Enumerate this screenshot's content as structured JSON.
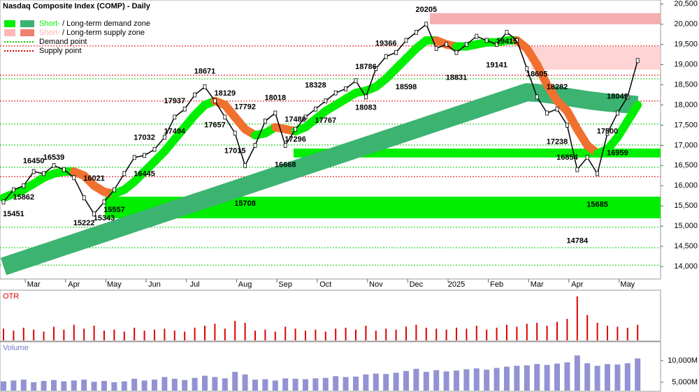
{
  "chart_data": {
    "type": "line",
    "title": "Nasdaq Composite Index (COMP) - Daily",
    "legend": [
      {
        "label": "Short-",
        "sep": " / ",
        "label2": "Long-term demand zone",
        "colors": [
          "#00ee00",
          "#3cb371"
        ]
      },
      {
        "label": "Short-",
        "sep": " / ",
        "label2": "Long-term supply zone",
        "colors": [
          "#ffb6b6",
          "#f08070"
        ]
      },
      {
        "label": "Demand point",
        "colors": [
          "#00cc00"
        ]
      },
      {
        "label": "Supply point",
        "colors": [
          "#dd0000"
        ]
      }
    ],
    "categories": [
      null,
      null,
      null,
      "Mar",
      null,
      null,
      null,
      "Apr",
      null,
      null,
      null,
      "May",
      null,
      null,
      null,
      "Jun",
      null,
      null,
      null,
      "Jul",
      null,
      null,
      null,
      null,
      "Aug",
      null,
      null,
      null,
      "Sep",
      null,
      null,
      null,
      "Oct",
      null,
      null,
      null,
      null,
      "Nov",
      null,
      null,
      null,
      "Dec",
      null,
      null,
      null,
      "2025",
      null,
      null,
      null,
      "Feb",
      null,
      null,
      null,
      "Mar",
      null,
      null,
      null,
      "Apr",
      null,
      null,
      null,
      null,
      "May",
      null
    ],
    "price": {
      "color": "#000000",
      "values": [
        15600,
        15900,
        16000,
        16350,
        16300,
        16500,
        16400,
        16200,
        15700,
        15300,
        15600,
        15900,
        16300,
        16700,
        16750,
        16900,
        17200,
        17700,
        17900,
        18250,
        18450,
        18100,
        17700,
        17300,
        16500,
        17000,
        17600,
        17800,
        17000,
        17400,
        17700,
        17900,
        18100,
        18300,
        18400,
        18600,
        18200,
        18900,
        19200,
        19300,
        19600,
        19800,
        20000,
        19400,
        19500,
        19300,
        19500,
        19700,
        19600,
        19500,
        19800,
        19600,
        18900,
        18200,
        17800,
        17900,
        17500,
        16400,
        16700,
        16300,
        17300,
        17800,
        18200,
        19100
      ]
    },
    "short_term": {
      "color": "#00ee00",
      "color_down": "#f07030",
      "values": [
        15700,
        15800,
        15900,
        16050,
        16200,
        16300,
        16350,
        16350,
        16250,
        16000,
        15850,
        15800,
        15900,
        16100,
        16350,
        16600,
        16850,
        17150,
        17450,
        17750,
        18000,
        18100,
        18000,
        17700,
        17400,
        17250,
        17300,
        17450,
        17400,
        17350,
        17450,
        17650,
        17850,
        18000,
        18150,
        18300,
        18350,
        18450,
        18650,
        18900,
        19150,
        19400,
        19600,
        19600,
        19500,
        19450,
        19450,
        19500,
        19550,
        19550,
        19600,
        19600,
        19400,
        19000,
        18500,
        18100,
        17850,
        17400,
        17000,
        16800,
        16900,
        17200,
        17600,
        18000
      ]
    },
    "long_term": {
      "color": "#3cb371",
      "values": [
        14000,
        14083,
        14166,
        14249,
        14332,
        14415,
        14498,
        14581,
        14664,
        14747,
        14830,
        14913,
        14996,
        15079,
        15162,
        15245,
        15328,
        15411,
        15494,
        15577,
        15660,
        15743,
        15826,
        15909,
        15992,
        16075,
        16158,
        16241,
        16324,
        16407,
        16490,
        16573,
        16656,
        16739,
        16822,
        16905,
        16988,
        17071,
        17154,
        17237,
        17320,
        17403,
        17486,
        17569,
        17652,
        17735,
        17818,
        17901,
        17984,
        18067,
        18150,
        18233,
        18316,
        18300,
        18270,
        18240,
        18200,
        18160,
        18120,
        18090,
        18060,
        18040,
        18020,
        18000
      ]
    },
    "demand_zones": [
      [
        16700,
        16920
      ],
      [
        15193,
        15729
      ]
    ],
    "supply_zones": [
      [
        19999,
        20275
      ],
      [
        18875,
        19446
      ]
    ],
    "demand_points": [
      18649,
      17527,
      17009,
      16456,
      14970,
      14466,
      14034
    ],
    "supply_points": [
      19463,
      18737,
      18097,
      16225
    ],
    "annotations": [
      {
        "label": 15451,
        "i": 1,
        "side": "below"
      },
      {
        "label": 15862,
        "i": 2,
        "side": "below"
      },
      {
        "label": 16450,
        "i": 3,
        "side": "above"
      },
      {
        "label": 16539,
        "i": 5,
        "side": "above"
      },
      {
        "label": 15222,
        "i": 8,
        "side": "below"
      },
      {
        "label": 16021,
        "i": 9,
        "side": "above"
      },
      {
        "label": 15343,
        "i": 10,
        "side": "below"
      },
      {
        "label": 15557,
        "i": 11,
        "side": "below"
      },
      {
        "label": 17032,
        "i": 14,
        "side": "above"
      },
      {
        "label": 16445,
        "i": 14,
        "side": "below"
      },
      {
        "label": 17937,
        "i": 17,
        "side": "above"
      },
      {
        "label": 17494,
        "i": 17,
        "side": "below"
      },
      {
        "label": 18671,
        "i": 20,
        "side": "above"
      },
      {
        "label": 18129,
        "i": 22,
        "side": "above"
      },
      {
        "label": 17657,
        "i": 21,
        "side": "below"
      },
      {
        "label": 17792,
        "i": 24,
        "side": "above"
      },
      {
        "label": 17015,
        "i": 23,
        "side": "below"
      },
      {
        "label": 15708,
        "i": 24,
        "side": "below"
      },
      {
        "label": 18018,
        "i": 27,
        "side": "above"
      },
      {
        "label": 17480,
        "i": 29,
        "side": "above"
      },
      {
        "label": 17296,
        "i": 29,
        "side": "below"
      },
      {
        "label": 16668,
        "i": 28,
        "side": "below"
      },
      {
        "label": 18328,
        "i": 31,
        "side": "above"
      },
      {
        "label": 17767,
        "i": 32,
        "side": "below"
      },
      {
        "label": 18786,
        "i": 36,
        "side": "above"
      },
      {
        "label": 18083,
        "i": 36,
        "side": "below"
      },
      {
        "label": 19366,
        "i": 38,
        "side": "above"
      },
      {
        "label": 18598,
        "i": 40,
        "side": "below"
      },
      {
        "label": 20205,
        "i": 42,
        "side": "above"
      },
      {
        "label": 18831,
        "i": 45,
        "side": "below"
      },
      {
        "label": 19415,
        "i": 50,
        "side": "above"
      },
      {
        "label": 19141,
        "i": 49,
        "side": "below"
      },
      {
        "label": 18605,
        "i": 53,
        "side": "above"
      },
      {
        "label": 18282,
        "i": 55,
        "side": "above"
      },
      {
        "label": 17238,
        "i": 55,
        "side": "below"
      },
      {
        "label": 16854,
        "i": 56,
        "side": "below"
      },
      {
        "label": 14784,
        "i": 57,
        "side": "below"
      },
      {
        "label": 15685,
        "i": 59,
        "side": "below"
      },
      {
        "label": 18049,
        "i": 61,
        "side": "above"
      },
      {
        "label": 17500,
        "i": 60,
        "side": "below"
      },
      {
        "label": 16959,
        "i": 61,
        "side": "below"
      }
    ],
    "ylim": [
      13690,
      20600
    ],
    "yticks": [
      {
        "value": 14000,
        "label": "14,000"
      },
      {
        "value": 14500,
        "label": "14,500"
      },
      {
        "value": 15000,
        "label": "15,000"
      },
      {
        "value": 15500,
        "label": "15,500"
      },
      {
        "value": 16000,
        "label": "16,000"
      },
      {
        "value": 16500,
        "label": "16,500"
      },
      {
        "value": 17000,
        "label": "17,000"
      },
      {
        "value": 17500,
        "label": "17,500"
      },
      {
        "value": 18000,
        "label": "18,000"
      },
      {
        "value": 18500,
        "label": "18,500"
      },
      {
        "value": 19000,
        "label": "19,000"
      },
      {
        "value": 19500,
        "label": "19,500"
      },
      {
        "value": 20000,
        "label": "20,000"
      },
      {
        "value": 20500,
        "label": "20,500"
      }
    ],
    "otr": {
      "label": "OTR",
      "color": "#dd0000",
      "ylim": [
        0,
        5
      ],
      "values": [
        1.2,
        1.0,
        1.3,
        1.1,
        0.9,
        1.4,
        1.1,
        1.6,
        1.2,
        1.5,
        1.0,
        1.1,
        0.9,
        1.3,
        1.0,
        1.1,
        1.2,
        1.0,
        0.9,
        1.3,
        1.5,
        1.7,
        1.2,
        2.0,
        1.8,
        1.0,
        1.1,
        0.9,
        1.4,
        1.2,
        1.0,
        1.1,
        0.9,
        1.2,
        1.3,
        1.1,
        1.5,
        1.0,
        1.2,
        1.1,
        1.4,
        1.6,
        1.3,
        1.2,
        1.1,
        1.3,
        1.2,
        1.5,
        1.1,
        1.3,
        1.6,
        1.4,
        1.7,
        1.8,
        1.5,
        1.9,
        2.2,
        4.5,
        2.6,
        1.8,
        1.5,
        1.4,
        1.3,
        1.6
      ]
    },
    "volume": {
      "label": "Volume",
      "color": "#7878c8",
      "ylim": [
        3060,
        14030
      ],
      "yticks": [
        {
          "value": 10000,
          "label": "10,000M"
        },
        {
          "value": 5000,
          "label": "5,000M"
        }
      ],
      "values": [
        5200,
        5400,
        5600,
        5000,
        5300,
        5500,
        5200,
        5400,
        5600,
        5100,
        5300,
        5000,
        5200,
        5800,
        5400,
        5600,
        6200,
        5800,
        5500,
        6000,
        6500,
        6200,
        5900,
        7400,
        6800,
        5600,
        5700,
        5400,
        5900,
        5800,
        5700,
        5900,
        6000,
        6400,
        6200,
        6300,
        6800,
        7000,
        6900,
        7200,
        7600,
        8100,
        7400,
        7800,
        7500,
        7700,
        8000,
        8200,
        7900,
        8300,
        8600,
        8800,
        8900,
        9200,
        9000,
        9300,
        9600,
        11200,
        9400,
        8800,
        9200,
        9100,
        9400,
        10500
      ]
    }
  }
}
